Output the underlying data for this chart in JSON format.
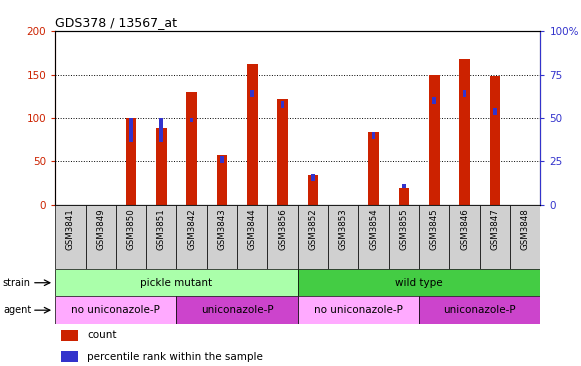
{
  "title": "GDS378 / 13567_at",
  "samples": [
    "GSM3841",
    "GSM3849",
    "GSM3850",
    "GSM3851",
    "GSM3842",
    "GSM3843",
    "GSM3844",
    "GSM3856",
    "GSM3852",
    "GSM3853",
    "GSM3854",
    "GSM3855",
    "GSM3845",
    "GSM3846",
    "GSM3847",
    "GSM3848"
  ],
  "counts": [
    0,
    0,
    100,
    88,
    130,
    57,
    162,
    122,
    35,
    0,
    84,
    20,
    150,
    168,
    148,
    0
  ],
  "percentile_bottom": [
    0,
    0,
    36,
    36,
    48,
    24,
    62,
    56,
    14,
    0,
    38,
    10,
    58,
    62,
    52,
    0
  ],
  "percentile_top": [
    0,
    0,
    50,
    50,
    50,
    28,
    66,
    60,
    18,
    0,
    42,
    12,
    62,
    66,
    56,
    0
  ],
  "ylim_left": [
    0,
    200
  ],
  "ylim_right": [
    0,
    100
  ],
  "yticks_left": [
    0,
    50,
    100,
    150,
    200
  ],
  "yticks_right": [
    0,
    25,
    50,
    75,
    100
  ],
  "ytick_labels_right": [
    "0",
    "25",
    "50",
    "75",
    "100%"
  ],
  "bar_color": "#cc2200",
  "percentile_color": "#3333cc",
  "bg_color": "#ffffff",
  "plot_bg": "#ffffff",
  "xtick_bg": "#d0d0d0",
  "strain_color_light": "#aaffaa",
  "strain_color_dark": "#44cc44",
  "agent_color_light": "#ffaaff",
  "agent_color_dark": "#cc44cc",
  "tick_color_left": "#cc2200",
  "tick_color_right": "#3333cc",
  "bar_width": 0.35
}
